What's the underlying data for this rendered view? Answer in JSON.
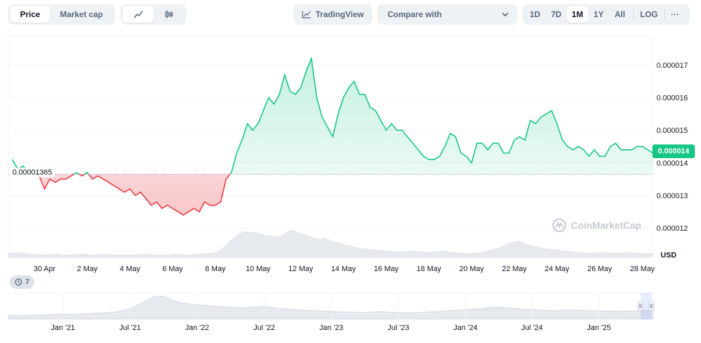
{
  "toolbar": {
    "view_tabs": [
      {
        "label": "Price",
        "active": true
      },
      {
        "label": "Market cap",
        "active": false
      }
    ],
    "chart_type_icons": [
      "line-chart-icon",
      "candlestick-icon"
    ],
    "tradingview_label": "TradingView",
    "compare_label": "Compare with",
    "range_tabs": [
      {
        "label": "1D",
        "active": false
      },
      {
        "label": "7D",
        "active": false
      },
      {
        "label": "1M",
        "active": true
      },
      {
        "label": "1Y",
        "active": false
      },
      {
        "label": "All",
        "active": false
      }
    ],
    "log_label": "LOG",
    "more_label": "···"
  },
  "colors": {
    "up": "#16c784",
    "down": "#ea3943",
    "grid": "#eff2f5",
    "axis_text": "#58667e",
    "volume": "#e6e9ee"
  },
  "reference_label": "0.00001365",
  "current_price_label": "0.000014",
  "watermark_text": "CoinMarketCap",
  "currency_label": "USD",
  "events_count": "7",
  "chart_data": {
    "type": "line",
    "x_range": [
      "2025-04-28",
      "2025-05-28"
    ],
    "ylim": [
      1.11e-05,
      1.79e-05
    ],
    "reference_value": 1.365e-05,
    "x_ticks": [
      "30 Apr",
      "2 May",
      "4 May",
      "6 May",
      "8 May",
      "10 May",
      "12 May",
      "14 May",
      "16 May",
      "18 May",
      "20 May",
      "22 May",
      "24 May",
      "26 May",
      "28 May"
    ],
    "y_ticks": [
      "0.000012",
      "0.000013",
      "0.000014",
      "0.000015",
      "0.000016",
      "0.000017"
    ],
    "series": [
      {
        "x": [
          "Apr 28 12:00",
          "Apr 28 18:00",
          "Apr 29 00:00",
          "Apr 29 06:00",
          "Apr 29 12:00",
          "Apr 29 18:00",
          "Apr 30 00:00",
          "Apr 30 06:00",
          "Apr 30 12:00",
          "Apr 30 18:00",
          "May 1 00:00",
          "May 1 06:00",
          "May 1 12:00",
          "May 1 18:00",
          "May 2 00:00",
          "May 2 06:00",
          "May 2 12:00",
          "May 2 18:00",
          "May 3 00:00",
          "May 3 06:00",
          "May 3 12:00",
          "May 3 18:00",
          "May 4 00:00",
          "May 4 06:00",
          "May 4 12:00",
          "May 4 18:00",
          "May 5 00:00",
          "May 5 06:00",
          "May 5 12:00",
          "May 5 18:00",
          "May 6 00:00",
          "May 6 06:00",
          "May 6 12:00",
          "May 6 18:00",
          "May 7 00:00",
          "May 7 06:00",
          "May 7 12:00",
          "May 7 18:00",
          "May 8 00:00",
          "May 8 06:00",
          "May 8 12:00",
          "May 8 18:00",
          "May 9 00:00",
          "May 9 06:00",
          "May 9 12:00",
          "May 9 18:00",
          "May 10 00:00",
          "May 10 06:00",
          "May 10 12:00",
          "May 10 18:00",
          "May 11 00:00",
          "May 11 06:00",
          "May 11 12:00",
          "May 11 18:00",
          "May 12 00:00",
          "May 12 06:00",
          "May 12 12:00",
          "May 12 18:00",
          "May 13 00:00",
          "May 13 06:00",
          "May 13 12:00",
          "May 13 18:00",
          "May 14 00:00",
          "May 14 06:00",
          "May 14 12:00",
          "May 14 18:00",
          "May 15 00:00",
          "May 15 06:00",
          "May 15 12:00",
          "May 15 18:00",
          "May 16 00:00",
          "May 16 06:00",
          "May 16 12:00",
          "May 16 18:00",
          "May 17 00:00",
          "May 17 06:00",
          "May 17 12:00",
          "May 17 18:00",
          "May 18 00:00",
          "May 18 06:00",
          "May 18 12:00",
          "May 18 18:00",
          "May 19 00:00",
          "May 19 06:00",
          "May 19 12:00",
          "May 19 18:00",
          "May 20 00:00",
          "May 20 06:00",
          "May 20 12:00",
          "May 20 18:00",
          "May 21 00:00",
          "May 21 06:00",
          "May 21 12:00",
          "May 21 18:00",
          "May 22 00:00",
          "May 22 06:00",
          "May 22 12:00",
          "May 22 18:00",
          "May 23 00:00",
          "May 23 06:00",
          "May 23 12:00",
          "May 23 18:00",
          "May 24 00:00",
          "May 24 06:00",
          "May 24 12:00",
          "May 24 18:00",
          "May 25 00:00",
          "May 25 06:00",
          "May 25 12:00",
          "May 25 18:00",
          "May 26 00:00",
          "May 26 06:00",
          "May 26 12:00",
          "May 26 18:00",
          "May 27 00:00",
          "May 27 06:00",
          "May 27 12:00",
          "May 27 18:00",
          "May 28 00:00",
          "May 28 06:00",
          "May 28 12:00"
        ],
        "y": [
          1.41e-05,
          1.38e-05,
          1.39e-05,
          1.37e-05,
          1.38e-05,
          1.36e-05,
          1.32e-05,
          1.35e-05,
          1.34e-05,
          1.35e-05,
          1.35e-05,
          1.36e-05,
          1.37e-05,
          1.36e-05,
          1.37e-05,
          1.35e-05,
          1.36e-05,
          1.35e-05,
          1.34e-05,
          1.33e-05,
          1.32e-05,
          1.31e-05,
          1.32e-05,
          1.3e-05,
          1.31e-05,
          1.29e-05,
          1.27e-05,
          1.28e-05,
          1.26e-05,
          1.27e-05,
          1.26e-05,
          1.25e-05,
          1.24e-05,
          1.25e-05,
          1.26e-05,
          1.25e-05,
          1.28e-05,
          1.27e-05,
          1.27e-05,
          1.28e-05,
          1.35e-05,
          1.37e-05,
          1.43e-05,
          1.47e-05,
          1.52e-05,
          1.5e-05,
          1.52e-05,
          1.56e-05,
          1.6e-05,
          1.58e-05,
          1.61e-05,
          1.67e-05,
          1.62e-05,
          1.61e-05,
          1.63e-05,
          1.68e-05,
          1.72e-05,
          1.6e-05,
          1.54e-05,
          1.51e-05,
          1.48e-05,
          1.55e-05,
          1.6e-05,
          1.63e-05,
          1.65e-05,
          1.61e-05,
          1.61e-05,
          1.57e-05,
          1.56e-05,
          1.53e-05,
          1.5e-05,
          1.52e-05,
          1.5e-05,
          1.5e-05,
          1.48e-05,
          1.46e-05,
          1.44e-05,
          1.42e-05,
          1.41e-05,
          1.41e-05,
          1.42e-05,
          1.45e-05,
          1.49e-05,
          1.48e-05,
          1.43e-05,
          1.42e-05,
          1.4e-05,
          1.46e-05,
          1.46e-05,
          1.44e-05,
          1.46e-05,
          1.46e-05,
          1.43e-05,
          1.43e-05,
          1.47e-05,
          1.48e-05,
          1.47e-05,
          1.53e-05,
          1.52e-05,
          1.54e-05,
          1.55e-05,
          1.56e-05,
          1.52e-05,
          1.47e-05,
          1.45e-05,
          1.44e-05,
          1.45e-05,
          1.44e-05,
          1.42e-05,
          1.44e-05,
          1.42e-05,
          1.42e-05,
          1.45e-05,
          1.46e-05,
          1.44e-05,
          1.44e-05,
          1.44e-05,
          1.45e-05,
          1.45e-05,
          1.44e-05,
          1.43e-05
        ]
      }
    ],
    "volume": [
      0.16,
      0.17,
      0.18,
      0.15,
      0.12,
      0.1,
      0.09,
      0.1,
      0.11,
      0.12,
      0.1,
      0.09,
      0.1,
      0.11,
      0.12,
      0.1,
      0.09,
      0.1,
      0.11,
      0.1,
      0.09,
      0.08,
      0.1,
      0.09,
      0.1,
      0.11,
      0.12,
      0.1,
      0.09,
      0.08,
      0.1,
      0.12,
      0.11,
      0.09,
      0.1,
      0.12,
      0.14,
      0.15,
      0.16,
      0.2,
      0.35,
      0.55,
      0.7,
      0.85,
      0.95,
      0.9,
      0.92,
      0.85,
      0.8,
      0.78,
      0.75,
      0.8,
      0.95,
      1.0,
      0.9,
      0.85,
      0.78,
      0.7,
      0.65,
      0.7,
      0.6,
      0.55,
      0.5,
      0.45,
      0.4,
      0.35,
      0.32,
      0.3,
      0.28,
      0.26,
      0.24,
      0.22,
      0.2,
      0.2,
      0.22,
      0.25,
      0.22,
      0.2,
      0.18,
      0.2,
      0.22,
      0.24,
      0.2,
      0.18,
      0.16,
      0.15,
      0.14,
      0.16,
      0.18,
      0.22,
      0.28,
      0.32,
      0.4,
      0.5,
      0.55,
      0.6,
      0.52,
      0.45,
      0.4,
      0.36,
      0.32,
      0.3,
      0.28,
      0.24,
      0.22,
      0.2,
      0.18,
      0.16,
      0.15,
      0.16,
      0.18,
      0.17,
      0.16,
      0.15,
      0.16,
      0.17,
      0.18,
      0.16,
      0.15,
      0.14,
      0.14
    ]
  },
  "navigator": {
    "labels": [
      "Jan '21",
      "Jul '21",
      "Jan '22",
      "Jul '22",
      "Jan '23",
      "Jul '23",
      "Jan '24",
      "Jul '24",
      "Jan '25"
    ],
    "profile": [
      0.15,
      0.15,
      0.16,
      0.17,
      0.18,
      0.2,
      0.22,
      0.2,
      0.22,
      0.24,
      0.26,
      0.28,
      0.32,
      0.4,
      0.55,
      0.75,
      0.95,
      1.0,
      0.82,
      0.7,
      0.65,
      0.62,
      0.58,
      0.55,
      0.52,
      0.5,
      0.48,
      0.52,
      0.55,
      0.5,
      0.45,
      0.42,
      0.4,
      0.38,
      0.36,
      0.34,
      0.32,
      0.3,
      0.3,
      0.28,
      0.3,
      0.32,
      0.3,
      0.28,
      0.27,
      0.28,
      0.3,
      0.32,
      0.35,
      0.38,
      0.4,
      0.42,
      0.45,
      0.5,
      0.52,
      0.48,
      0.45,
      0.42,
      0.4,
      0.38,
      0.36,
      0.38,
      0.4,
      0.38,
      0.36,
      0.35,
      0.34,
      0.33,
      0.34,
      0.35,
      0.36,
      0.35
    ]
  }
}
